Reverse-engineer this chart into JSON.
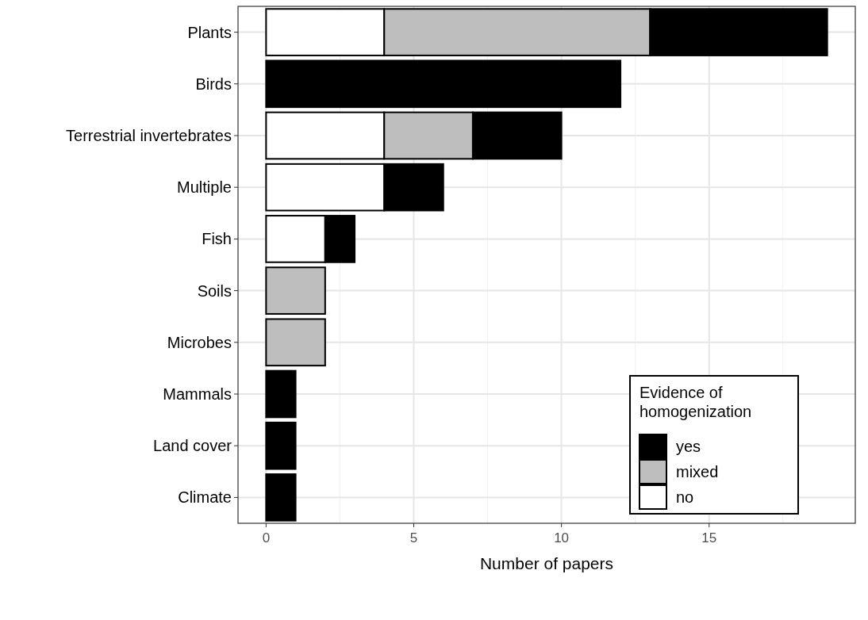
{
  "chart_data": {
    "type": "bar",
    "orientation": "horizontal",
    "stacked": true,
    "categories": [
      "Plants",
      "Birds",
      "Terrestrial invertebrates",
      "Multiple",
      "Fish",
      "Soils",
      "Microbes",
      "Mammals",
      "Land cover",
      "Climate"
    ],
    "series": [
      {
        "name": "no",
        "color": "#ffffff",
        "values": [
          4,
          0,
          4,
          4,
          2,
          0,
          0,
          0,
          0,
          0
        ]
      },
      {
        "name": "mixed",
        "color": "#bebebe",
        "values": [
          9,
          0,
          3,
          0,
          0,
          2,
          2,
          0,
          0,
          0
        ]
      },
      {
        "name": "yes",
        "color": "#000000",
        "values": [
          6,
          12,
          3,
          2,
          1,
          0,
          0,
          1,
          1,
          1
        ]
      }
    ],
    "xlabel": "Number of papers",
    "legend_title": "Evidence of homogenization",
    "legend": "bottom right",
    "xlim": [
      -0.95,
      19.95
    ],
    "xticks": [
      0,
      5,
      10,
      15
    ],
    "grid": true
  }
}
